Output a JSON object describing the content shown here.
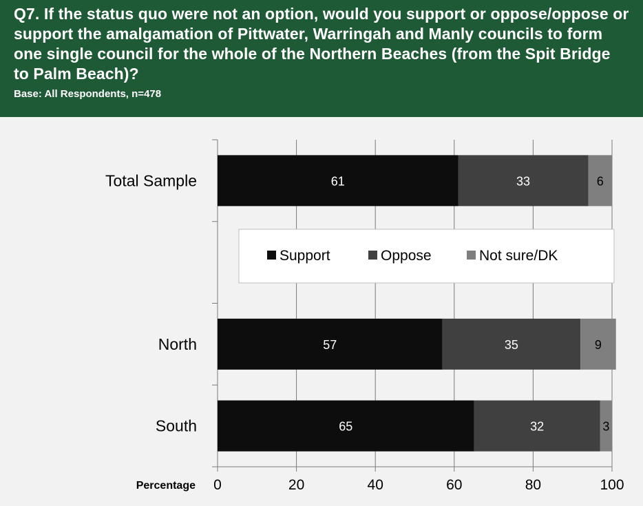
{
  "header": {
    "question": "Q7. If the status quo were not an option, would you support or oppose/oppose or support the amalgamation of Pittwater, Warringah and Manly councils to form one single council for the whole of the Northern Beaches (from the Spit Bridge to Palm Beach)?",
    "base": "Base: All Respondents, n=478"
  },
  "chart_data": {
    "type": "bar",
    "orientation": "horizontal",
    "stacked": true,
    "categories": [
      "Total Sample",
      "",
      "North",
      "South"
    ],
    "series": [
      {
        "name": "Support",
        "values": [
          61,
          null,
          57,
          65
        ],
        "color": "#0d0d0d"
      },
      {
        "name": "Oppose",
        "values": [
          33,
          null,
          35,
          32
        ],
        "color": "#404040"
      },
      {
        "name": "Not sure/DK",
        "values": [
          6,
          null,
          9,
          3
        ],
        "color": "#7f7f7f"
      }
    ],
    "xlabel": "Percentage",
    "xlim": [
      0,
      100
    ],
    "xticks": [
      0,
      20,
      40,
      60,
      80,
      100
    ],
    "grid": true,
    "legend_position": "center"
  }
}
